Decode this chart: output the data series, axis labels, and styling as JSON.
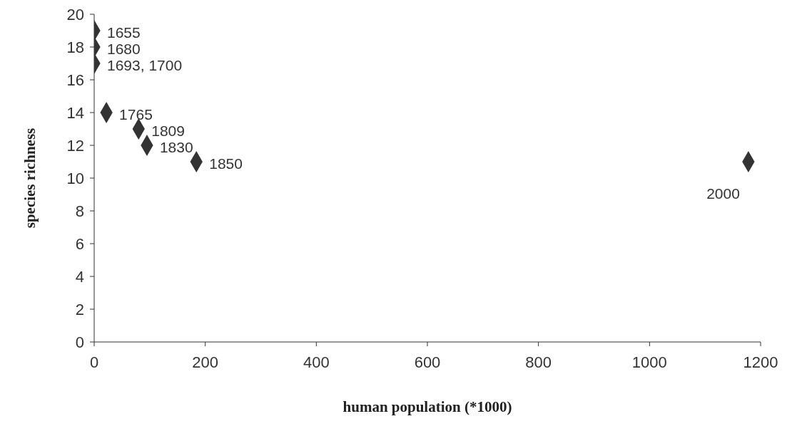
{
  "chart_data": {
    "type": "scatter",
    "xlabel": "human population (*1000)",
    "ylabel": "species richness",
    "x": [
      0,
      0,
      0,
      22,
      80,
      95,
      184,
      1178
    ],
    "values": [
      19,
      18,
      17,
      14,
      13,
      12,
      11,
      11
    ],
    "color": "#333333",
    "marker": "diamond",
    "grid": false,
    "legend": false,
    "xlim": [
      0,
      1200
    ],
    "xticks": [
      0,
      200,
      400,
      600,
      800,
      1000,
      1200
    ],
    "ylim": [
      0,
      20
    ],
    "yticks": [
      0,
      2,
      4,
      6,
      8,
      10,
      12,
      14,
      16,
      18,
      20
    ],
    "annotations": [
      {
        "text": "1655",
        "x": 0,
        "y": 19
      },
      {
        "text": "1680",
        "x": 0,
        "y": 18
      },
      {
        "text": "1693, 1700",
        "x": 0,
        "y": 17
      },
      {
        "text": "1765",
        "x": 22,
        "y": 14
      },
      {
        "text": "1809",
        "x": 80,
        "y": 13
      },
      {
        "text": "1830",
        "x": 95,
        "y": 12
      },
      {
        "text": "1850",
        "x": 184,
        "y": 11
      },
      {
        "text": "2000",
        "x": 1178,
        "y": 11
      }
    ]
  }
}
